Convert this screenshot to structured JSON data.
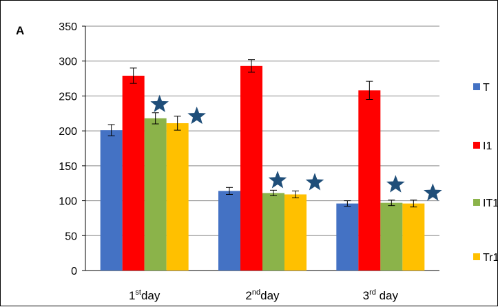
{
  "panel_label": "A",
  "colors": {
    "T": "#4472c4",
    "I1": "#ff0000",
    "IT1": "#8bb34a",
    "Tr1": "#ffc000",
    "star": "#1f4e79",
    "grid": "#888888",
    "axis": "#000000"
  },
  "chart_data": {
    "type": "bar",
    "title": "",
    "xlabel": "",
    "ylabel": "",
    "ylim": [
      0,
      350
    ],
    "yticks": [
      0,
      50,
      100,
      150,
      200,
      250,
      300,
      350
    ],
    "grid": true,
    "legend_position": "right",
    "categories": [
      {
        "num": "1",
        "suffix": "st",
        "word": "day"
      },
      {
        "num": "2",
        "suffix": "nd",
        "word": "day"
      },
      {
        "num": "3",
        "suffix": "rd",
        "word": " day"
      }
    ],
    "series": [
      {
        "name": "T",
        "color_key": "T",
        "values": [
          201,
          114,
          96
        ],
        "errors": [
          8,
          5,
          4
        ]
      },
      {
        "name": "I1",
        "color_key": "I1",
        "values": [
          279,
          293,
          258
        ],
        "errors": [
          11,
          9,
          13
        ]
      },
      {
        "name": "IT1",
        "color_key": "IT1",
        "values": [
          218,
          111,
          97
        ],
        "errors": [
          8,
          4,
          4
        ]
      },
      {
        "name": "Tr1",
        "color_key": "Tr1",
        "values": [
          211,
          109,
          96
        ],
        "errors": [
          10,
          5,
          5
        ]
      }
    ],
    "significance_stars": [
      {
        "category": 0,
        "series": "IT1",
        "y": 238
      },
      {
        "category": 0,
        "series": "Tr1",
        "y": 221
      },
      {
        "category": 1,
        "series": "IT1",
        "y": 129
      },
      {
        "category": 1,
        "series": "Tr1",
        "y": 126
      },
      {
        "category": 2,
        "series": "IT1",
        "y": 123
      },
      {
        "category": 2,
        "series": "Tr1",
        "y": 111
      }
    ],
    "legend": [
      "T",
      "I1",
      "IT1",
      "Tr1"
    ]
  }
}
